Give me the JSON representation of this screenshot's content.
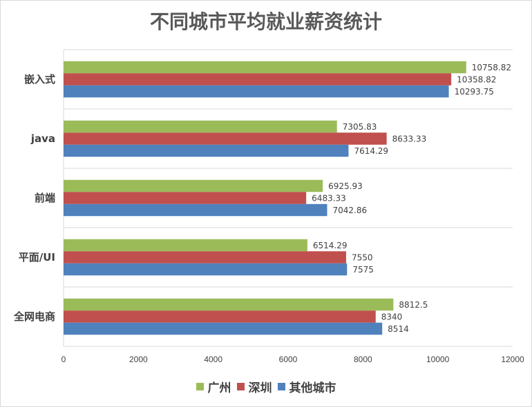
{
  "chart_data": {
    "type": "bar",
    "orientation": "horizontal",
    "title": "不同城市平均就业薪资统计",
    "categories": [
      "嵌入式",
      "java",
      "前端",
      "平面/UI",
      "全网电商"
    ],
    "series": [
      {
        "name": "广州",
        "color": "#9bbb59",
        "values": [
          10758.82,
          7305.83,
          6925.93,
          6514.29,
          8812.5
        ]
      },
      {
        "name": "深圳",
        "color": "#c0504d",
        "values": [
          10358.82,
          8633.33,
          6483.33,
          7550,
          8340
        ]
      },
      {
        "name": "其他城市",
        "color": "#4f81bd",
        "values": [
          10293.75,
          7614.29,
          7042.86,
          7575,
          8514
        ]
      }
    ],
    "value_labels": [
      [
        "10758.82",
        "7305.83",
        "6925.93",
        "6514.29",
        "8812.5"
      ],
      [
        "10358.82",
        "8633.33",
        "6483.33",
        "7550",
        "8340"
      ],
      [
        "10293.75",
        "7614.29",
        "7042.86",
        "7575",
        "8514"
      ]
    ],
    "xlim": [
      0,
      12000
    ],
    "xticks": [
      "0",
      "2000",
      "4000",
      "6000",
      "8000",
      "10000",
      "12000"
    ],
    "grid": "horizontal category separators",
    "legend": "bottom"
  }
}
